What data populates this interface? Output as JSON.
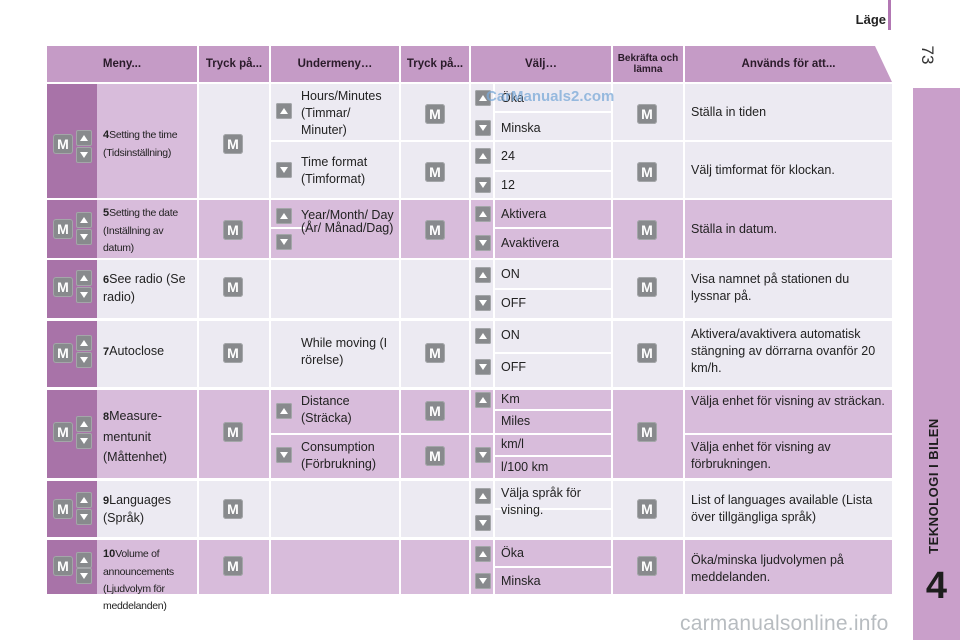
{
  "header": {
    "label": "Läge",
    "page_number": "73"
  },
  "sidebar": {
    "chapter_title": "TEKNOLOGI I BILEN",
    "chapter_number": "4"
  },
  "table": {
    "columns": [
      "Meny...",
      "Tryck på...",
      "Undermeny…",
      "Tryck på...",
      "Välj…",
      "Bekräfta och lämna",
      "Används för att..."
    ],
    "rows": [
      {
        "num": "4",
        "menu": "Setting the time (Tidsinställning)",
        "sub": [
          {
            "label": "Hours/Minutes (Timmar/ Minuter)",
            "options": [
              "Öka",
              "Minska"
            ],
            "use": "Ställa in tiden"
          },
          {
            "label": "Time format (Timformat)",
            "options": [
              "24",
              "12"
            ],
            "use": "Välj timformat för klockan."
          }
        ]
      },
      {
        "num": "5",
        "menu": "Setting the date (Inställning av datum)",
        "sub": [
          {
            "label": "Year/Month/ Day (År/ Månad/Dag)",
            "options": [
              "Aktivera",
              "Avaktivera"
            ],
            "use": "Ställa in datum."
          }
        ]
      },
      {
        "num": "6",
        "menu": "See radio (Se radio)",
        "options": [
          "ON",
          "OFF"
        ],
        "use": "Visa namnet på stationen du lyssnar på."
      },
      {
        "num": "7",
        "menu": "Autoclose",
        "sub_label": "While moving (I rörelse)",
        "options": [
          "ON",
          "OFF"
        ],
        "use": "Aktivera/avaktivera automatisk stängning av dörrarna ovanför 20 km/h."
      },
      {
        "num": "8",
        "menu": "Measure- mentunit (Måttenhet)",
        "sub": [
          {
            "label": "Distance (Sträcka)",
            "options": [
              "Km",
              "Miles"
            ],
            "use": "Välja enhet för visning av sträckan."
          },
          {
            "label": "Consumption (Förbrukning)",
            "options": [
              "km/l",
              "l/100 km"
            ],
            "use": "Välja enhet för visning av förbrukningen."
          }
        ]
      },
      {
        "num": "9",
        "menu": "Languages (Språk)",
        "option": "Välja språk för visning.",
        "use": "List of languages available (Lista över tillgängliga språk)"
      },
      {
        "num": "10",
        "menu": "Volume of announcements (Ljudvolym för meddelanden)",
        "options": [
          "Öka",
          "Minska"
        ],
        "use": "Öka/minska ljudvolymen på meddelanden."
      }
    ]
  },
  "button": {
    "m": "M"
  },
  "watermarks": {
    "top": "CarManuals2.com",
    "bottom": "carmanualsonline.info"
  }
}
